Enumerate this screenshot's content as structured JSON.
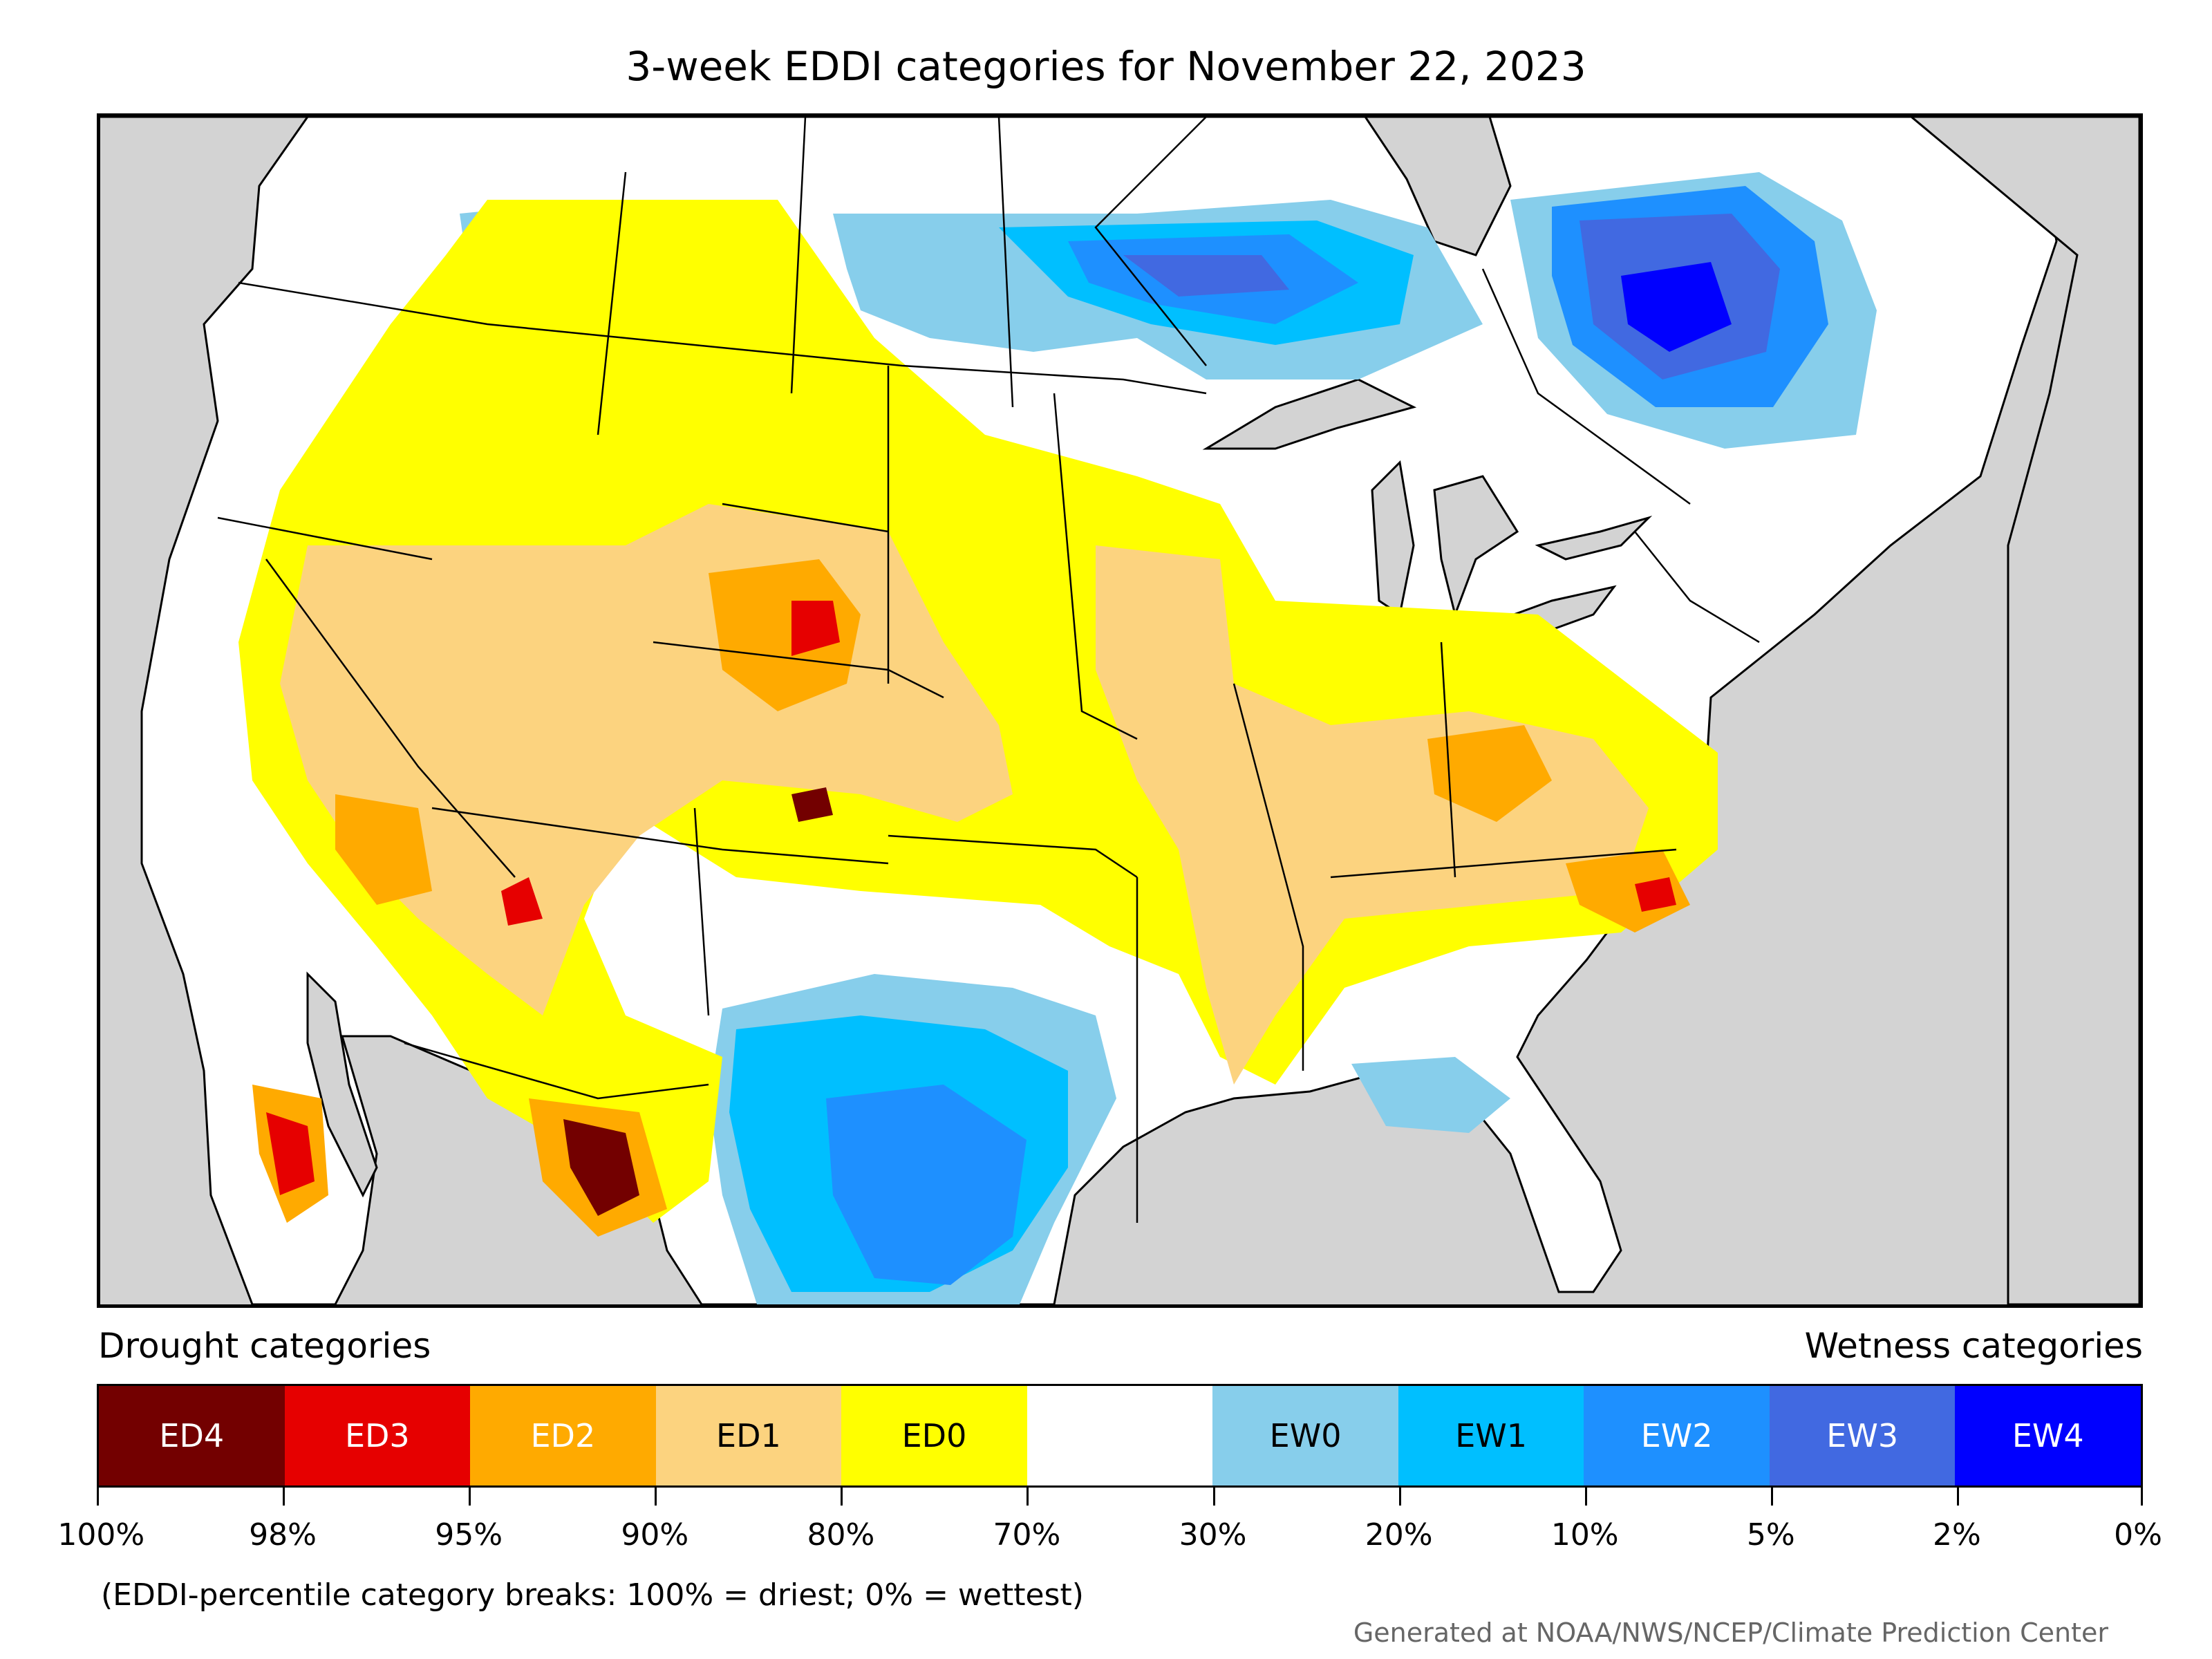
{
  "title": "3-week EDDI categories for November 22, 2023",
  "legend": {
    "drought_label": "Drought categories",
    "wetness_label": "Wetness categories",
    "categories": [
      {
        "label": "ED4",
        "color": "#730000",
        "text_color": "#ffffff"
      },
      {
        "label": "ED3",
        "color": "#e60000",
        "text_color": "#ffffff"
      },
      {
        "label": "ED2",
        "color": "#ffaa00",
        "text_color": "#ffffff"
      },
      {
        "label": "ED1",
        "color": "#fcd37f",
        "text_color": "#000000"
      },
      {
        "label": "ED0",
        "color": "#ffff00",
        "text_color": "#000000"
      },
      {
        "label": "",
        "color": "#ffffff",
        "text_color": "#000000"
      },
      {
        "label": "EW0",
        "color": "#87ceeb",
        "text_color": "#000000"
      },
      {
        "label": "EW1",
        "color": "#00bfff",
        "text_color": "#000000"
      },
      {
        "label": "EW2",
        "color": "#1e90ff",
        "text_color": "#ffffff"
      },
      {
        "label": "EW3",
        "color": "#4169e1",
        "text_color": "#ffffff"
      },
      {
        "label": "EW4",
        "color": "#0000ff",
        "text_color": "#ffffff"
      }
    ],
    "breaks": [
      "100%",
      "98%",
      "95%",
      "90%",
      "80%",
      "70%",
      "30%",
      "20%",
      "10%",
      "5%",
      "2%",
      "0%"
    ]
  },
  "note": "(EDDI-percentile category breaks: 100% = driest; 0% = wettest)",
  "credit": "Generated at NOAA/NWS/NCEP/Climate Prediction Center",
  "colors": {
    "ocean": "#d3d3d3",
    "land": "#ffffff",
    "border": "#000000"
  }
}
